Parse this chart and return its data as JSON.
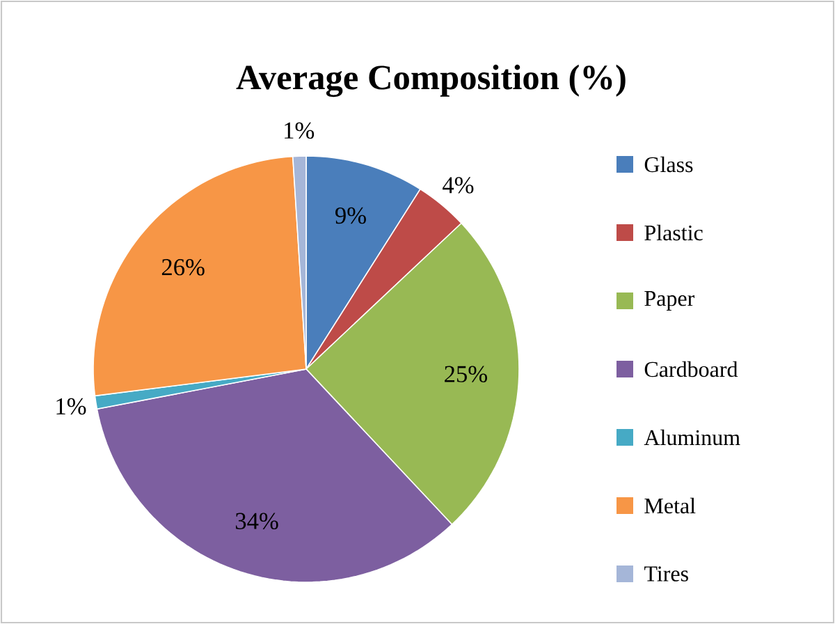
{
  "chart_data": {
    "type": "pie",
    "title": "Average Composition (%)",
    "categories": [
      "Glass",
      "Plastic",
      "Paper",
      "Cardboard",
      "Aluminum",
      "Metal",
      "Tires"
    ],
    "values": [
      9,
      4,
      25,
      34,
      1,
      26,
      1
    ],
    "value_labels": [
      "9%",
      "4%",
      "25%",
      "34%",
      "1%",
      "26%",
      "1%"
    ],
    "colors": [
      "#4a7ebb",
      "#be4b48",
      "#98b954",
      "#7d5fa0",
      "#46aac5",
      "#f79646",
      "#a5b6d8"
    ],
    "legend": "right"
  }
}
